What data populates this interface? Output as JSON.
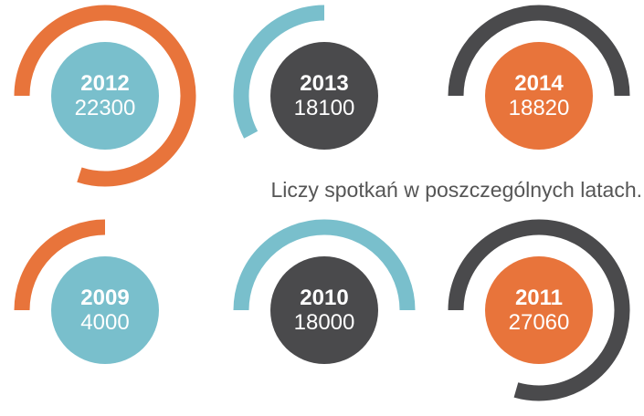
{
  "items": [
    {
      "year": "2012",
      "value": 22300
    },
    {
      "year": "2013",
      "value": 18100
    },
    {
      "year": "2014",
      "value": 18820
    },
    {
      "year": "2009",
      "value": 4000
    },
    {
      "year": "2010",
      "value": 18000
    },
    {
      "year": "2011",
      "value": 27060
    }
  ],
  "caption": "Liczy spotkań w poszczególnych latach."
}
